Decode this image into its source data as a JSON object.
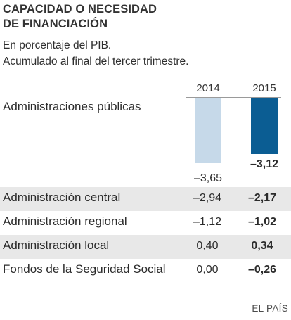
{
  "title": [
    "CAPACIDAD O NECESIDAD",
    "DE FINANCIACIÓN"
  ],
  "subtitle": [
    "En porcentaje del PIB.",
    "Acumulado al final del tercer trimestre."
  ],
  "source": "EL PAÍS",
  "colors": {
    "bar_2014": "#c6d9e9",
    "bar_2015": "#0b5d93",
    "row_shade": "#e8e8e8"
  },
  "chart_data": {
    "type": "bar",
    "title": "CAPACIDAD O NECESIDAD DE FINANCIACIÓN",
    "subtitle": "En porcentaje del PIB. Acumulado al final del tercer trimestre.",
    "categories": [
      "Administraciones públicas"
    ],
    "series": [
      {
        "name": "2014",
        "values": [
          -3.65
        ],
        "label": "–3,65"
      },
      {
        "name": "2015",
        "values": [
          -3.12
        ],
        "label": "–3,12"
      }
    ],
    "ylim": [
      -3.65,
      0
    ],
    "table": {
      "type": "table",
      "columns": [
        "2014",
        "2015"
      ],
      "rows": [
        {
          "name": "Administración central",
          "values": [
            -2.94,
            -2.17
          ],
          "labels": [
            "–2,94",
            "–2,17"
          ],
          "shaded": true
        },
        {
          "name": "Administración regional",
          "values": [
            -1.12,
            -1.02
          ],
          "labels": [
            "–1,12",
            "–1,02"
          ],
          "shaded": false
        },
        {
          "name": "Administración local",
          "values": [
            0.4,
            0.34
          ],
          "labels": [
            "0,40",
            "0,34"
          ],
          "shaded": true
        },
        {
          "name": "Fondos de la Seguridad Social",
          "values": [
            0.0,
            -0.26
          ],
          "labels": [
            "0,00",
            "–0,26"
          ],
          "shaded": false
        }
      ]
    }
  }
}
